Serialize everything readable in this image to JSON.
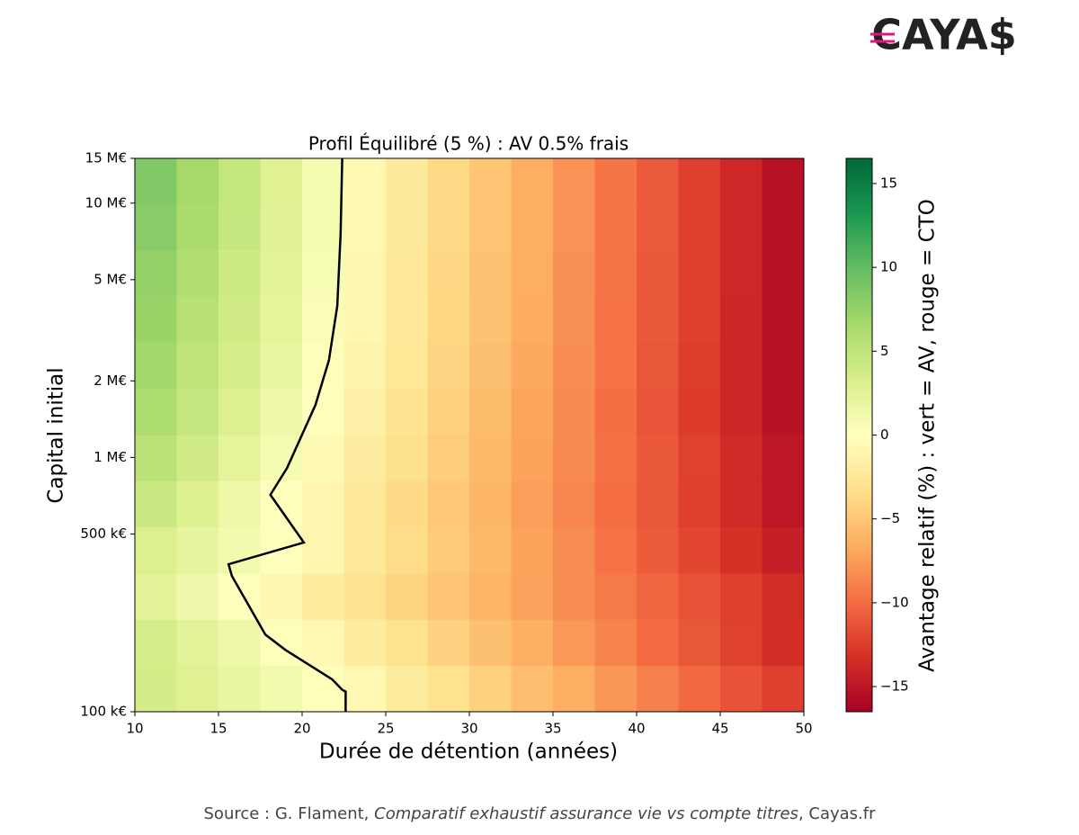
{
  "logo": "CAYA$",
  "source": [
    "Source : G. Flament, ",
    "Comparatif exhaustif assurance vie vs compte titres",
    ", Cayas.fr"
  ],
  "chart_data": {
    "type": "heatmap",
    "title": "Profil Équilibré (5 %) : AV 0.5% frais",
    "xlabel": "Durée de détention (années)",
    "ylabel": "Capital initial",
    "colorbar_label": "Avantage relatif (%) : vert = AV, rouge = CTO",
    "xlim": [
      10,
      50
    ],
    "xticks": [
      10,
      15,
      20,
      25,
      30,
      35,
      40,
      45,
      50
    ],
    "ylim": [
      100000,
      15000000
    ],
    "yscale": "log",
    "yticks": [
      {
        "value": 100000,
        "label": "100 k€"
      },
      {
        "value": 500000,
        "label": "500 k€"
      },
      {
        "value": 1000000,
        "label": "1 M€"
      },
      {
        "value": 2000000,
        "label": "2 M€"
      },
      {
        "value": 5000000,
        "label": "5 M€"
      },
      {
        "value": 10000000,
        "label": "10 M€"
      },
      {
        "value": 15000000,
        "label": "15 M€"
      }
    ],
    "clim": [
      -16.5,
      16.5
    ],
    "cticks": [
      {
        "value": -15,
        "label": "−15"
      },
      {
        "value": -10,
        "label": "−10"
      },
      {
        "value": -5,
        "label": "−5"
      },
      0,
      5,
      10,
      15
    ],
    "colormap": [
      "#a50026",
      "#d73027",
      "#f46d43",
      "#fdae61",
      "#fee08b",
      "#ffffbf",
      "#d9ef8b",
      "#a6d96a",
      "#66bd63",
      "#1a9850",
      "#006837"
    ],
    "xbins": [
      10,
      12.5,
      15,
      17.5,
      20,
      22.5,
      25,
      27.5,
      30,
      32.5,
      35,
      37.5,
      40,
      42.5,
      45,
      47.5,
      50
    ],
    "ybins": [
      100000,
      152000,
      231000,
      351000,
      533000,
      810000,
      1230000,
      1870000,
      2840000,
      4320000,
      6560000,
      9970000,
      15000000
    ],
    "values": [
      [
        3.6,
        2.8,
        1.9,
        1.1,
        0.3,
        -0.8,
        -2.0,
        -3.1,
        -4.3,
        -5.5,
        -6.6,
        -7.8,
        -8.9,
        -10.1,
        -11.3,
        -12.4
      ],
      [
        3.5,
        2.4,
        1.4,
        0.3,
        -0.8,
        -2.0,
        -3.1,
        -4.2,
        -5.4,
        -6.5,
        -7.7,
        -8.8,
        -10.0,
        -11.1,
        -12.3,
        -13.4
      ],
      [
        2.4,
        1.3,
        0.1,
        -0.9,
        -2.0,
        -3.0,
        -4.1,
        -5.1,
        -6.2,
        -7.2,
        -8.3,
        -9.3,
        -10.3,
        -11.4,
        -12.4,
        -13.5
      ],
      [
        3.0,
        2.0,
        1.1,
        0.1,
        -1.1,
        -2.3,
        -3.5,
        -4.7,
        -5.9,
        -7.1,
        -8.3,
        -9.6,
        -10.8,
        -12.0,
        -13.2,
        -14.4
      ],
      [
        4.3,
        2.9,
        1.5,
        0.1,
        -1.1,
        -2.4,
        -3.6,
        -4.9,
        -6.1,
        -7.4,
        -8.6,
        -9.9,
        -11.1,
        -12.4,
        -13.6,
        -14.9
      ],
      [
        5.3,
        3.8,
        2.3,
        0.8,
        -0.6,
        -1.9,
        -3.2,
        -4.5,
        -5.8,
        -7.1,
        -8.4,
        -9.7,
        -11.0,
        -12.3,
        -13.6,
        -14.9
      ],
      [
        6.2,
        4.6,
        3.0,
        1.4,
        -0.1,
        -1.5,
        -2.9,
        -4.3,
        -5.7,
        -7.0,
        -8.4,
        -9.8,
        -11.2,
        -12.6,
        -13.9,
        -15.3
      ],
      [
        6.7,
        5.1,
        3.5,
        1.9,
        0.3,
        -1.2,
        -2.6,
        -4.0,
        -5.4,
        -6.8,
        -8.2,
        -9.6,
        -11.1,
        -12.5,
        -13.9,
        -15.3
      ],
      [
        7.2,
        5.5,
        3.8,
        2.2,
        0.5,
        -1.0,
        -2.4,
        -3.9,
        -5.3,
        -6.7,
        -8.1,
        -9.6,
        -11.0,
        -12.4,
        -13.9,
        -15.3
      ],
      [
        7.6,
        5.9,
        4.1,
        2.4,
        0.7,
        -0.9,
        -2.3,
        -3.8,
        -5.2,
        -6.6,
        -8.1,
        -9.5,
        -11.0,
        -12.4,
        -13.8,
        -15.3
      ],
      [
        8.1,
        6.3,
        4.5,
        2.6,
        0.8,
        -0.8,
        -2.2,
        -3.7,
        -5.1,
        -6.6,
        -8.0,
        -9.5,
        -10.9,
        -12.4,
        -13.8,
        -15.3
      ],
      [
        8.5,
        6.6,
        4.7,
        2.8,
        0.9,
        -0.8,
        -2.2,
        -3.7,
        -5.1,
        -6.6,
        -8.0,
        -9.5,
        -10.9,
        -12.4,
        -13.8,
        -15.3
      ]
    ],
    "contour": {
      "color": "#000000",
      "x": [
        22.4,
        22.3,
        22.1,
        21.6,
        20.8,
        19.1,
        18.1,
        20.1,
        15.6,
        15.8,
        17.8,
        19.0,
        21.8,
        22.4,
        22.6,
        22.6
      ],
      "y": [
        15000000,
        7570000,
        3940000,
        2410000,
        1610000,
        910000,
        713000,
        463000,
        380000,
        342000,
        201000,
        175000,
        134000,
        122000,
        120000,
        100000
      ]
    }
  }
}
